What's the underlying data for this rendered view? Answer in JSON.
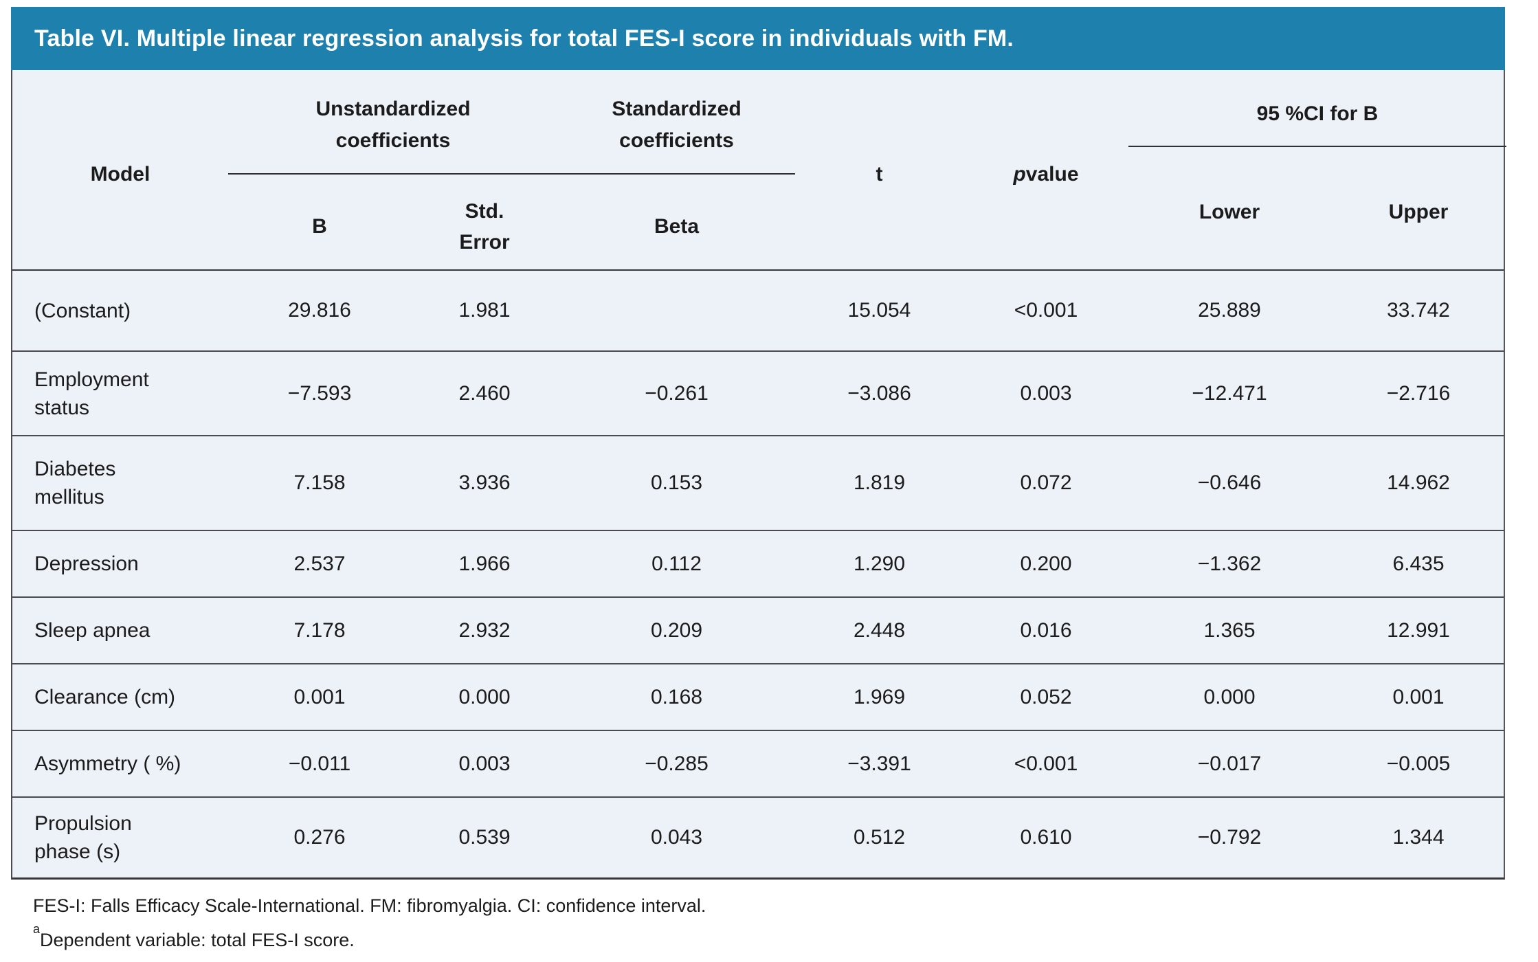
{
  "title": "Table VI. Multiple linear regression analysis for total FES-I score in individuals with FM.",
  "colors": {
    "header_bar": "#1d80ad",
    "title_text": "#ffffff",
    "table_background": "#edf1f8",
    "rule_lines": "#38383c",
    "body_text": "#1b1b1b"
  },
  "header": {
    "model": "Model",
    "group_unstandardized": "Unstandardized coefficients",
    "group_standardized": "Standardized coefficients",
    "group_ci": "95 %CI for B",
    "b": "B",
    "std_error": "Std. Error",
    "beta": "Beta",
    "t": "t",
    "p_italic": "p",
    "p_rest": " value",
    "lower": "Lower",
    "upper": "Upper"
  },
  "rows": [
    {
      "model": "(Constant)",
      "b": "29.816",
      "std_error": "1.981",
      "beta": "",
      "t": "15.054",
      "p": "<0.001",
      "lower": "25.889",
      "upper": "33.742"
    },
    {
      "model": "Employment\nstatus",
      "b": "−7.593",
      "std_error": "2.460",
      "beta": "−0.261",
      "t": "−3.086",
      "p": "0.003",
      "lower": "−12.471",
      "upper": "−2.716"
    },
    {
      "model": "Diabetes\nmellitus",
      "b": "7.158",
      "std_error": "3.936",
      "beta": "0.153",
      "t": "1.819",
      "p": "0.072",
      "lower": "−0.646",
      "upper": "14.962"
    },
    {
      "model": "Depression",
      "b": "2.537",
      "std_error": "1.966",
      "beta": "0.112",
      "t": "1.290",
      "p": "0.200",
      "lower": "−1.362",
      "upper": "6.435"
    },
    {
      "model": "Sleep apnea",
      "b": "7.178",
      "std_error": "2.932",
      "beta": "0.209",
      "t": "2.448",
      "p": "0.016",
      "lower": "1.365",
      "upper": "12.991"
    },
    {
      "model": "Clearance (cm)",
      "b": "0.001",
      "std_error": "0.000",
      "beta": "0.168",
      "t": "1.969",
      "p": "0.052",
      "lower": "0.000",
      "upper": "0.001"
    },
    {
      "model": "Asymmetry ( %)",
      "b": "−0.011",
      "std_error": "0.003",
      "beta": "−0.285",
      "t": "−3.391",
      "p": "<0.001",
      "lower": "−0.017",
      "upper": "−0.005"
    },
    {
      "model": "Propulsion\nphase (s)",
      "b": "0.276",
      "std_error": "0.539",
      "beta": "0.043",
      "t": "0.512",
      "p": "0.610",
      "lower": "−0.792",
      "upper": "1.344"
    }
  ],
  "footnotes": {
    "abbreviations": "FES-I: Falls Efficacy Scale-International. FM: fibromyalgia. CI: confidence interval.",
    "dependent_marker": "a",
    "dependent_text": "Dependent variable: total FES-I score."
  }
}
